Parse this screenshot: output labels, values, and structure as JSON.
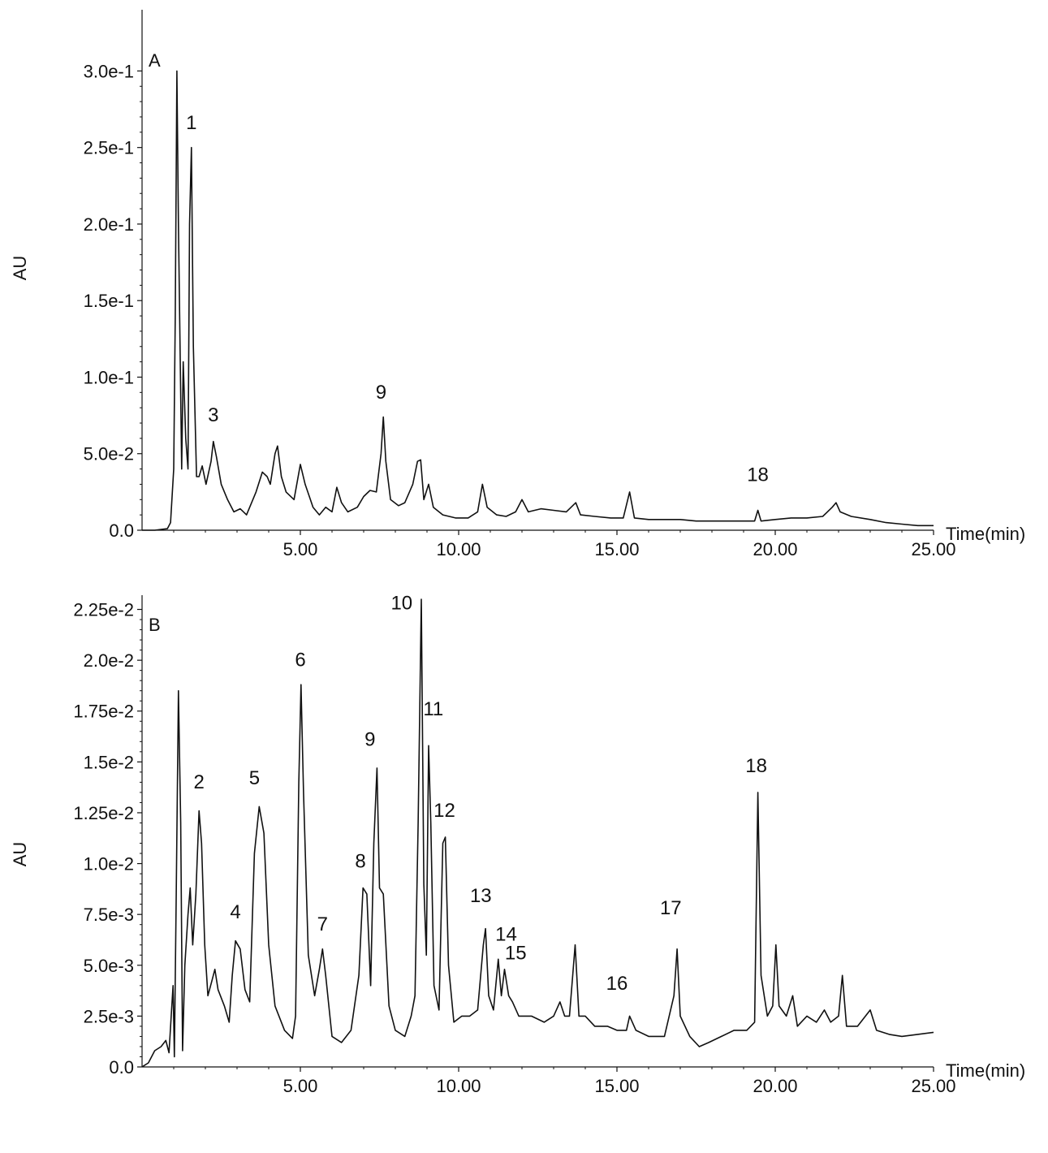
{
  "chart_data": [
    {
      "type": "line",
      "panel_label": "A",
      "ylabel": "AU",
      "xlabel": "Time(min)",
      "xlim": [
        0,
        25
      ],
      "ylim": [
        0,
        0.34
      ],
      "grid": false,
      "x_ticks": [
        5,
        10,
        15,
        20,
        25
      ],
      "x_tick_labels": [
        "5.00",
        "10.00",
        "15.00",
        "20.00",
        "25.00"
      ],
      "y_ticks": [
        0,
        0.05,
        0.1,
        0.15,
        0.2,
        0.25,
        0.3
      ],
      "y_tick_labels": [
        "0.0",
        "5.0e-2",
        "1.0e-1",
        "1.5e-1",
        "2.0e-1",
        "2.5e-1",
        "3.0e-1"
      ],
      "baseline": [
        [
          0,
          0
        ],
        [
          0.4,
          0
        ],
        [
          0.8,
          0.001
        ],
        [
          0.9,
          0.005
        ],
        [
          1.0,
          0.04
        ],
        [
          1.05,
          0.14
        ],
        [
          1.1,
          0.3
        ],
        [
          1.15,
          0.2
        ],
        [
          1.25,
          0.04
        ],
        [
          1.3,
          0.11
        ],
        [
          1.38,
          0.06
        ],
        [
          1.45,
          0.04
        ],
        [
          1.5,
          0.2
        ],
        [
          1.56,
          0.25
        ],
        [
          1.62,
          0.12
        ],
        [
          1.72,
          0.035
        ],
        [
          1.8,
          0.035
        ],
        [
          1.9,
          0.042
        ],
        [
          2.02,
          0.03
        ],
        [
          2.18,
          0.045
        ],
        [
          2.25,
          0.058
        ],
        [
          2.35,
          0.048
        ],
        [
          2.5,
          0.03
        ],
        [
          2.7,
          0.02
        ],
        [
          2.9,
          0.012
        ],
        [
          3.1,
          0.014
        ],
        [
          3.3,
          0.01
        ],
        [
          3.6,
          0.025
        ],
        [
          3.8,
          0.038
        ],
        [
          3.95,
          0.035
        ],
        [
          4.05,
          0.03
        ],
        [
          4.2,
          0.05
        ],
        [
          4.28,
          0.055
        ],
        [
          4.4,
          0.035
        ],
        [
          4.55,
          0.025
        ],
        [
          4.8,
          0.02
        ],
        [
          5.0,
          0.043
        ],
        [
          5.15,
          0.03
        ],
        [
          5.4,
          0.015
        ],
        [
          5.6,
          0.01
        ],
        [
          5.8,
          0.015
        ],
        [
          6.0,
          0.012
        ],
        [
          6.15,
          0.028
        ],
        [
          6.3,
          0.018
        ],
        [
          6.5,
          0.012
        ],
        [
          6.8,
          0.015
        ],
        [
          7.0,
          0.022
        ],
        [
          7.2,
          0.026
        ],
        [
          7.4,
          0.025
        ],
        [
          7.55,
          0.05
        ],
        [
          7.62,
          0.074
        ],
        [
          7.7,
          0.045
        ],
        [
          7.85,
          0.02
        ],
        [
          8.1,
          0.016
        ],
        [
          8.3,
          0.018
        ],
        [
          8.55,
          0.03
        ],
        [
          8.7,
          0.045
        ],
        [
          8.8,
          0.046
        ],
        [
          8.9,
          0.02
        ],
        [
          9.05,
          0.03
        ],
        [
          9.2,
          0.015
        ],
        [
          9.5,
          0.01
        ],
        [
          9.9,
          0.008
        ],
        [
          10.3,
          0.008
        ],
        [
          10.6,
          0.012
        ],
        [
          10.75,
          0.03
        ],
        [
          10.9,
          0.015
        ],
        [
          11.2,
          0.01
        ],
        [
          11.5,
          0.009
        ],
        [
          11.8,
          0.012
        ],
        [
          12.0,
          0.02
        ],
        [
          12.2,
          0.012
        ],
        [
          12.6,
          0.014
        ],
        [
          13.0,
          0.013
        ],
        [
          13.4,
          0.012
        ],
        [
          13.7,
          0.018
        ],
        [
          13.85,
          0.01
        ],
        [
          14.3,
          0.009
        ],
        [
          14.8,
          0.008
        ],
        [
          15.2,
          0.008
        ],
        [
          15.4,
          0.025
        ],
        [
          15.55,
          0.008
        ],
        [
          16.0,
          0.007
        ],
        [
          16.5,
          0.007
        ],
        [
          17.0,
          0.007
        ],
        [
          17.5,
          0.006
        ],
        [
          18.0,
          0.006
        ],
        [
          18.5,
          0.006
        ],
        [
          19.0,
          0.006
        ],
        [
          19.35,
          0.006
        ],
        [
          19.45,
          0.013
        ],
        [
          19.55,
          0.006
        ],
        [
          20.0,
          0.007
        ],
        [
          20.5,
          0.008
        ],
        [
          21.0,
          0.008
        ],
        [
          21.5,
          0.009
        ],
        [
          21.8,
          0.015
        ],
        [
          21.92,
          0.018
        ],
        [
          22.05,
          0.012
        ],
        [
          22.4,
          0.009
        ],
        [
          23.0,
          0.007
        ],
        [
          23.5,
          0.005
        ],
        [
          24.0,
          0.004
        ],
        [
          24.5,
          0.003
        ],
        [
          25.0,
          0.003
        ]
      ],
      "annotations": [
        {
          "text": "1",
          "x": 1.56,
          "y": 0.262
        },
        {
          "text": "3",
          "x": 2.25,
          "y": 0.071
        },
        {
          "text": "9",
          "x": 7.55,
          "y": 0.086
        },
        {
          "text": "18",
          "x": 19.45,
          "y": 0.032
        }
      ]
    },
    {
      "type": "line",
      "panel_label": "B",
      "ylabel": "AU",
      "xlabel": "Time(min)",
      "xlim": [
        0,
        25
      ],
      "ylim": [
        0,
        0.0232
      ],
      "grid": false,
      "x_ticks": [
        5,
        10,
        15,
        20,
        25
      ],
      "x_tick_labels": [
        "5.00",
        "10.00",
        "15.00",
        "20.00",
        "25.00"
      ],
      "y_ticks": [
        0,
        0.0025,
        0.005,
        0.0075,
        0.01,
        0.0125,
        0.015,
        0.0175,
        0.02,
        0.0225
      ],
      "y_tick_labels": [
        "0.0",
        "2.5e-3",
        "5.0e-3",
        "7.5e-3",
        "1.0e-2",
        "1.25e-2",
        "1.5e-2",
        "1.75e-2",
        "2.0e-2",
        "2.25e-2"
      ],
      "baseline": [
        [
          0,
          0
        ],
        [
          0.2,
          0.0002
        ],
        [
          0.4,
          0.0008
        ],
        [
          0.6,
          0.001
        ],
        [
          0.75,
          0.0013
        ],
        [
          0.85,
          0.0007
        ],
        [
          0.92,
          0.0025
        ],
        [
          0.98,
          0.004
        ],
        [
          1.02,
          0.0005
        ],
        [
          1.08,
          0.0085
        ],
        [
          1.15,
          0.0185
        ],
        [
          1.22,
          0.012
        ],
        [
          1.28,
          0.0008
        ],
        [
          1.35,
          0.005
        ],
        [
          1.45,
          0.0075
        ],
        [
          1.52,
          0.0088
        ],
        [
          1.6,
          0.006
        ],
        [
          1.7,
          0.0085
        ],
        [
          1.8,
          0.0126
        ],
        [
          1.88,
          0.011
        ],
        [
          1.98,
          0.006
        ],
        [
          2.08,
          0.0035
        ],
        [
          2.2,
          0.0042
        ],
        [
          2.3,
          0.0048
        ],
        [
          2.4,
          0.0038
        ],
        [
          2.6,
          0.003
        ],
        [
          2.75,
          0.0022
        ],
        [
          2.85,
          0.0045
        ],
        [
          2.95,
          0.0062
        ],
        [
          3.1,
          0.0058
        ],
        [
          3.25,
          0.0038
        ],
        [
          3.4,
          0.0032
        ],
        [
          3.55,
          0.0105
        ],
        [
          3.7,
          0.0128
        ],
        [
          3.85,
          0.0115
        ],
        [
          4.0,
          0.006
        ],
        [
          4.2,
          0.003
        ],
        [
          4.5,
          0.0018
        ],
        [
          4.75,
          0.0014
        ],
        [
          4.85,
          0.0025
        ],
        [
          4.95,
          0.014
        ],
        [
          5.02,
          0.0188
        ],
        [
          5.1,
          0.0135
        ],
        [
          5.25,
          0.0055
        ],
        [
          5.45,
          0.0035
        ],
        [
          5.6,
          0.0048
        ],
        [
          5.7,
          0.0058
        ],
        [
          5.8,
          0.0045
        ],
        [
          6.0,
          0.0015
        ],
        [
          6.3,
          0.0012
        ],
        [
          6.6,
          0.0018
        ],
        [
          6.85,
          0.0045
        ],
        [
          6.98,
          0.0088
        ],
        [
          7.1,
          0.0085
        ],
        [
          7.22,
          0.004
        ],
        [
          7.32,
          0.011
        ],
        [
          7.42,
          0.0147
        ],
        [
          7.5,
          0.0088
        ],
        [
          7.62,
          0.0085
        ],
        [
          7.8,
          0.003
        ],
        [
          8.0,
          0.0018
        ],
        [
          8.3,
          0.0015
        ],
        [
          8.5,
          0.0025
        ],
        [
          8.62,
          0.0035
        ],
        [
          8.72,
          0.012
        ],
        [
          8.82,
          0.023
        ],
        [
          8.9,
          0.009
        ],
        [
          8.98,
          0.0055
        ],
        [
          9.05,
          0.0158
        ],
        [
          9.12,
          0.012
        ],
        [
          9.22,
          0.004
        ],
        [
          9.38,
          0.0028
        ],
        [
          9.5,
          0.011
        ],
        [
          9.58,
          0.0113
        ],
        [
          9.68,
          0.005
        ],
        [
          9.85,
          0.0022
        ],
        [
          10.1,
          0.0025
        ],
        [
          10.35,
          0.0025
        ],
        [
          10.6,
          0.0028
        ],
        [
          10.78,
          0.006
        ],
        [
          10.85,
          0.0068
        ],
        [
          10.95,
          0.0035
        ],
        [
          11.1,
          0.0028
        ],
        [
          11.25,
          0.0053
        ],
        [
          11.35,
          0.0035
        ],
        [
          11.45,
          0.0048
        ],
        [
          11.58,
          0.0035
        ],
        [
          11.7,
          0.0032
        ],
        [
          11.9,
          0.0025
        ],
        [
          12.3,
          0.0025
        ],
        [
          12.7,
          0.0022
        ],
        [
          13.0,
          0.0025
        ],
        [
          13.2,
          0.0032
        ],
        [
          13.35,
          0.0025
        ],
        [
          13.5,
          0.0025
        ],
        [
          13.68,
          0.006
        ],
        [
          13.8,
          0.0025
        ],
        [
          14.0,
          0.0025
        ],
        [
          14.3,
          0.002
        ],
        [
          14.7,
          0.002
        ],
        [
          15.0,
          0.0018
        ],
        [
          15.3,
          0.0018
        ],
        [
          15.4,
          0.0025
        ],
        [
          15.6,
          0.0018
        ],
        [
          16.0,
          0.0015
        ],
        [
          16.5,
          0.0015
        ],
        [
          16.8,
          0.0035
        ],
        [
          16.9,
          0.0058
        ],
        [
          17.0,
          0.0025
        ],
        [
          17.3,
          0.0015
        ],
        [
          17.6,
          0.001
        ],
        [
          17.9,
          0.0012
        ],
        [
          18.3,
          0.0015
        ],
        [
          18.7,
          0.0018
        ],
        [
          19.1,
          0.0018
        ],
        [
          19.35,
          0.0022
        ],
        [
          19.45,
          0.0135
        ],
        [
          19.55,
          0.0045
        ],
        [
          19.75,
          0.0025
        ],
        [
          19.92,
          0.003
        ],
        [
          20.02,
          0.006
        ],
        [
          20.12,
          0.003
        ],
        [
          20.35,
          0.0025
        ],
        [
          20.55,
          0.0035
        ],
        [
          20.7,
          0.002
        ],
        [
          21.0,
          0.0025
        ],
        [
          21.3,
          0.0022
        ],
        [
          21.55,
          0.0028
        ],
        [
          21.75,
          0.0022
        ],
        [
          22.0,
          0.0025
        ],
        [
          22.12,
          0.0045
        ],
        [
          22.25,
          0.002
        ],
        [
          22.6,
          0.002
        ],
        [
          23.0,
          0.0028
        ],
        [
          23.2,
          0.0018
        ],
        [
          23.6,
          0.0016
        ],
        [
          24.0,
          0.0015
        ],
        [
          24.5,
          0.0016
        ],
        [
          25.0,
          0.0017
        ]
      ],
      "annotations": [
        {
          "text": "2",
          "x": 1.8,
          "y": 0.0137
        },
        {
          "text": "4",
          "x": 2.95,
          "y": 0.0073
        },
        {
          "text": "5",
          "x": 3.55,
          "y": 0.0139
        },
        {
          "text": "6",
          "x": 5.0,
          "y": 0.0197
        },
        {
          "text": "7",
          "x": 5.7,
          "y": 0.0067
        },
        {
          "text": "8",
          "x": 6.9,
          "y": 0.0098
        },
        {
          "text": "9",
          "x": 7.2,
          "y": 0.0158
        },
        {
          "text": "10",
          "x": 8.2,
          "y": 0.0225
        },
        {
          "text": "11",
          "x": 9.2,
          "y": 0.0173
        },
        {
          "text": "12",
          "x": 9.55,
          "y": 0.0123
        },
        {
          "text": "13",
          "x": 10.7,
          "y": 0.0081
        },
        {
          "text": "14",
          "x": 11.5,
          "y": 0.0062
        },
        {
          "text": "15",
          "x": 11.8,
          "y": 0.0053
        },
        {
          "text": "16",
          "x": 15.0,
          "y": 0.0038
        },
        {
          "text": "17",
          "x": 16.7,
          "y": 0.0075
        },
        {
          "text": "18",
          "x": 19.4,
          "y": 0.0145
        }
      ]
    }
  ]
}
